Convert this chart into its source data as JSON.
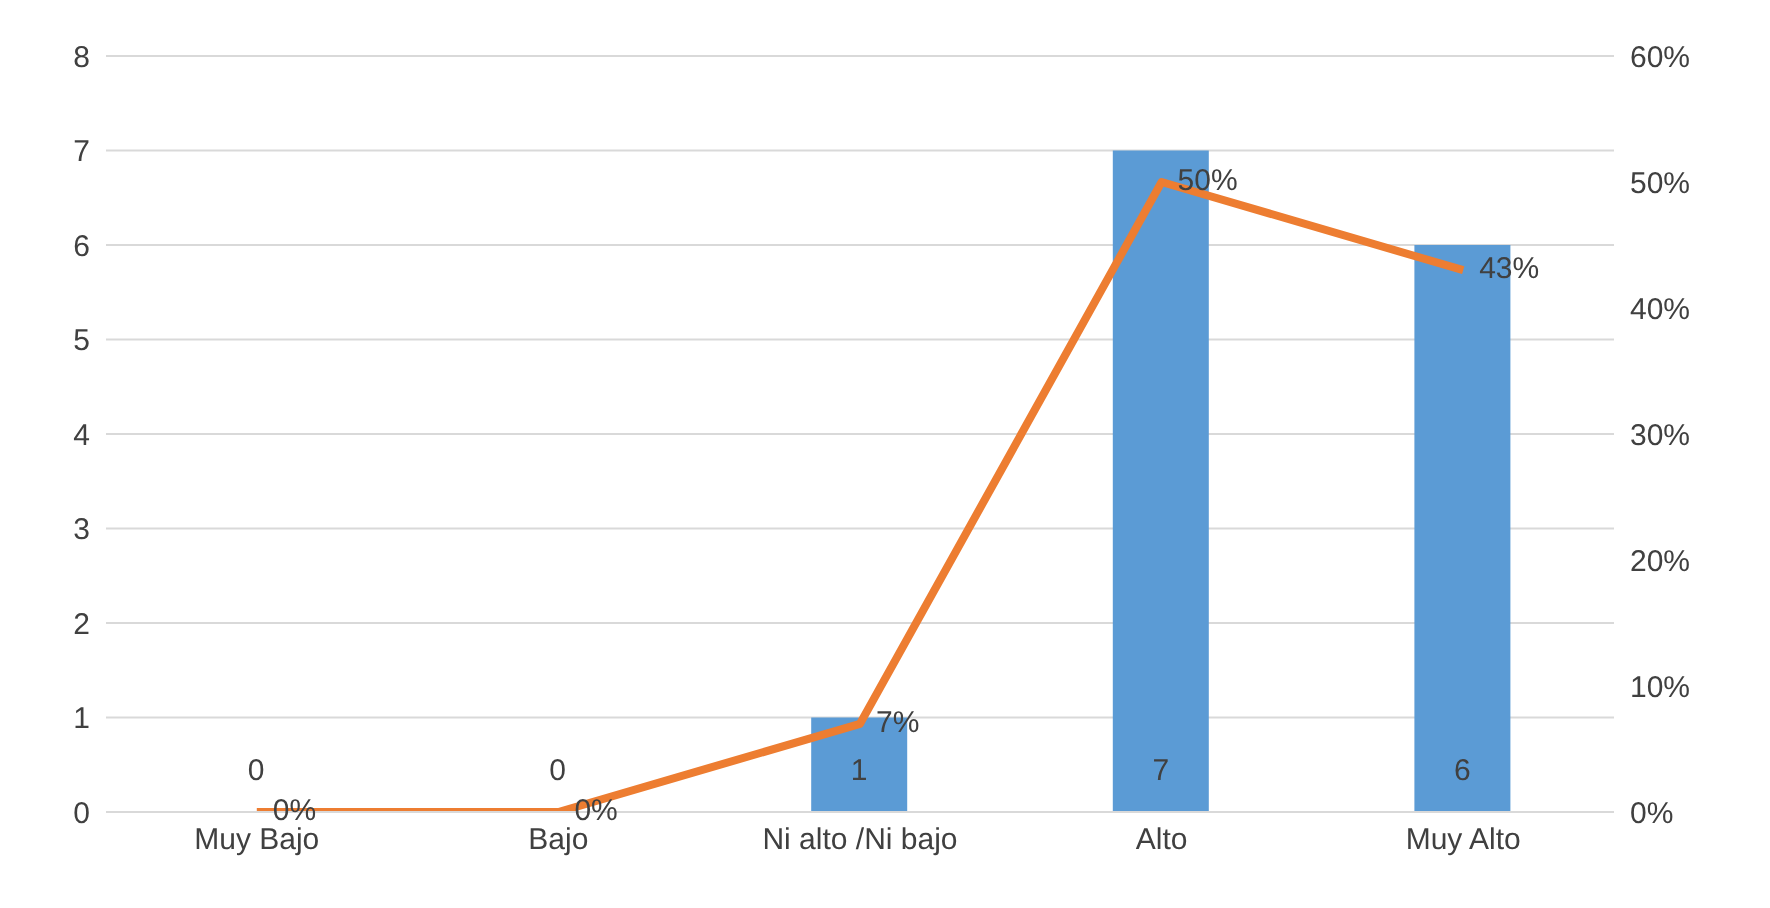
{
  "chart_data": {
    "type": "bar",
    "categories": [
      "Muy Bajo",
      "Bajo",
      "Ni alto /Ni bajo",
      "Alto",
      "Muy Alto"
    ],
    "series": [
      {
        "color": "#5b9bd5",
        "values": [
          0,
          0,
          1,
          7,
          6
        ],
        "value_labels": [
          "0",
          "0",
          "1",
          "7",
          "6"
        ]
      },
      {
        "type": "line",
        "axis": "y2",
        "color": "#ed7d31",
        "values": [
          0,
          0,
          7,
          50,
          43
        ],
        "value_labels": [
          "0%",
          "0%",
          "7%",
          "50%",
          "43%"
        ]
      }
    ],
    "ylim": [
      0,
      8
    ],
    "yticks": [
      0,
      1,
      2,
      3,
      4,
      5,
      6,
      7,
      8
    ],
    "y2lim": [
      0,
      60
    ],
    "y2ticks": [
      {
        "value": 0,
        "label": "0%"
      },
      {
        "value": 10,
        "label": "10%"
      },
      {
        "value": 20,
        "label": "20%"
      },
      {
        "value": 30,
        "label": "30%"
      },
      {
        "value": 40,
        "label": "40%"
      },
      {
        "value": 50,
        "label": "50%"
      },
      {
        "value": 60,
        "label": "60%"
      }
    ],
    "grid": "y",
    "marker": "none",
    "line_style": "solid"
  }
}
